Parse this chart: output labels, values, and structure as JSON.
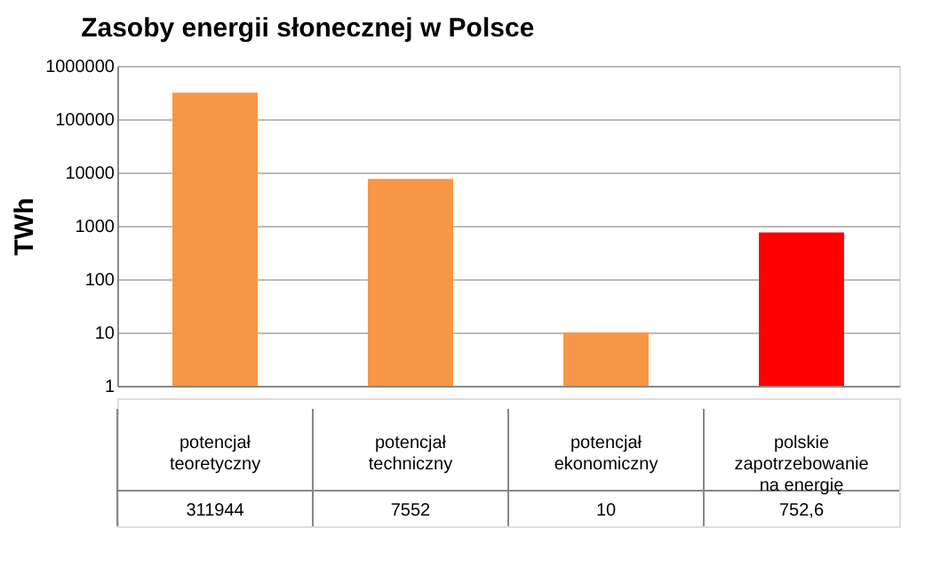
{
  "chart_data": {
    "type": "bar",
    "title": "Zasoby energii słonecznej w Polsce",
    "ylabel": "TWh",
    "categories": [
      "potencjał teoretyczny",
      "potencjał techniczny",
      "potencjał ekonomiczny",
      "polskie zapotrzebowanie na energię"
    ],
    "values": [
      311944,
      7552,
      10,
      752.6
    ],
    "colors": [
      "#f79646",
      "#f79646",
      "#f79646",
      "#ff0000"
    ],
    "value_labels": [
      "311944",
      "7552",
      "10",
      "752,6"
    ],
    "log": "y",
    "ylim": [
      1,
      1000000
    ],
    "yticks": [
      1,
      10,
      100,
      1000,
      10000,
      100000,
      1000000
    ],
    "grid": "y"
  }
}
